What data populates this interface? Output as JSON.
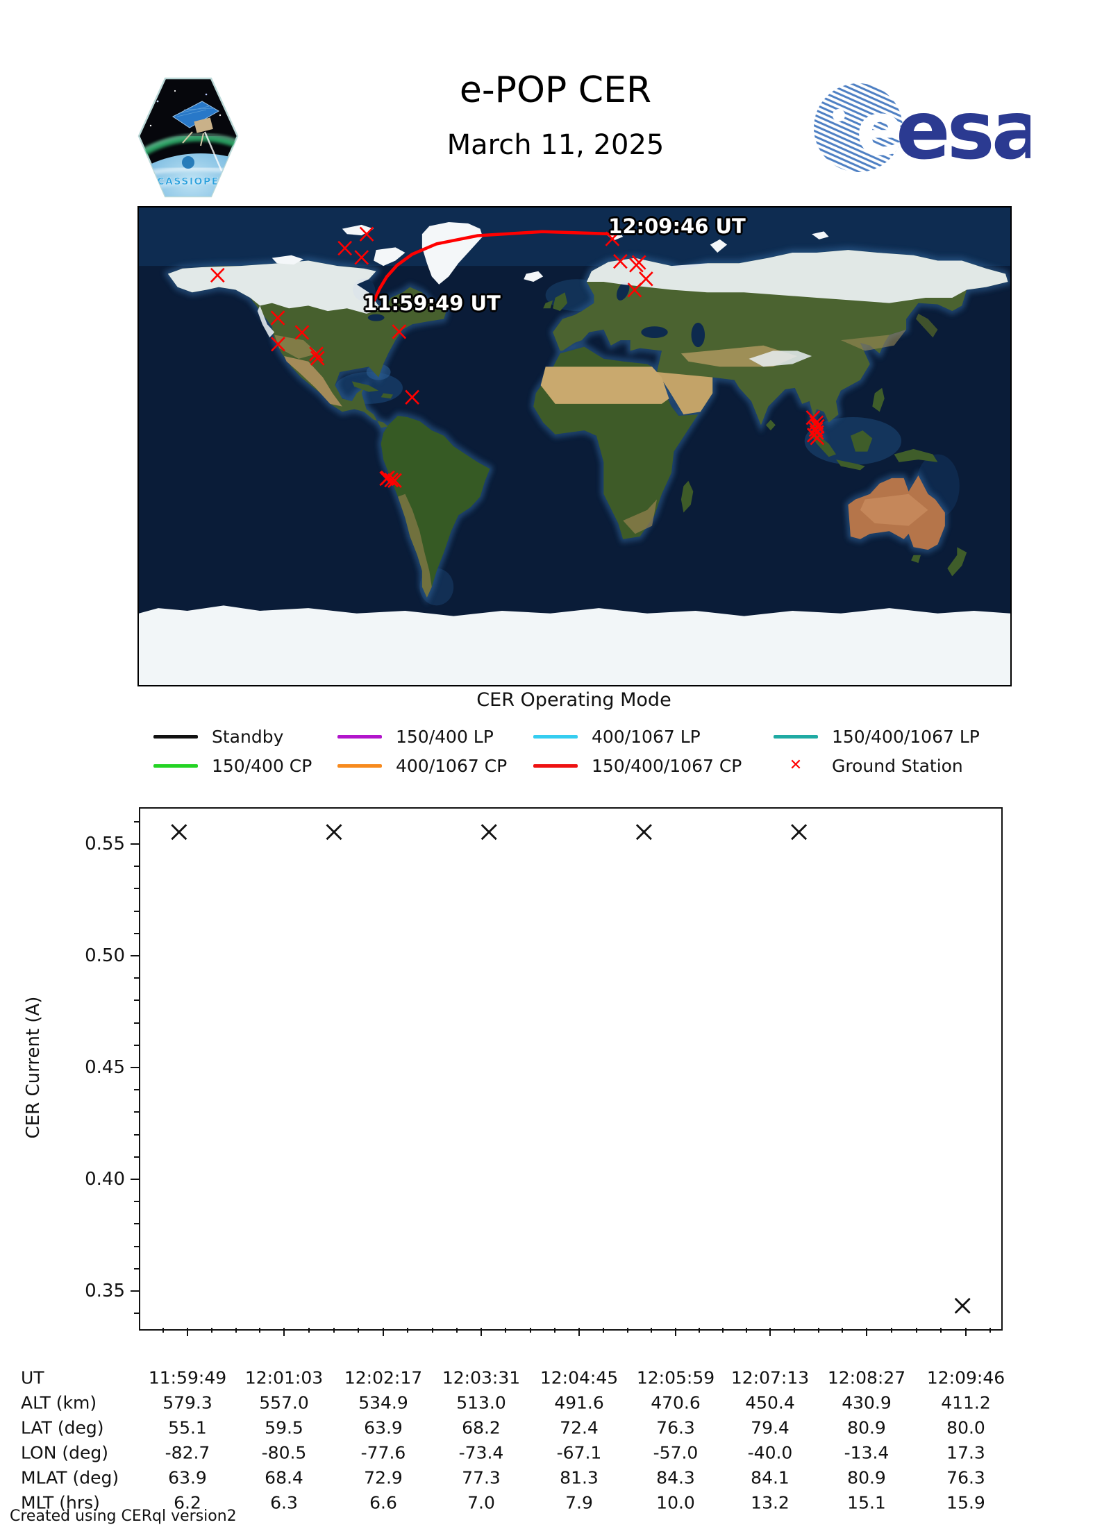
{
  "header": {
    "title": "e-POP CER",
    "subtitle": "March 11, 2025",
    "patch_text": "CASSIOPE",
    "esa_text": "esa"
  },
  "map": {
    "start_time_label": "11:59:49 UT",
    "end_time_label": "12:09:46 UT",
    "track_color": "#ff0000",
    "station_color": "#ff0000",
    "track_lonlat": [
      [
        -82.7,
        55.1
      ],
      [
        -80.5,
        59.5
      ],
      [
        -77.6,
        63.9
      ],
      [
        -73.4,
        68.2
      ],
      [
        -67.1,
        72.4
      ],
      [
        -57.0,
        76.3
      ],
      [
        -40.0,
        79.4
      ],
      [
        -13.4,
        80.9
      ],
      [
        17.3,
        80.0
      ]
    ],
    "stations_lonlat": [
      [
        -147.5,
        64.5
      ],
      [
        -94.9,
        74.7
      ],
      [
        -85.9,
        80.0
      ],
      [
        -88.0,
        71.2
      ],
      [
        -122.6,
        48.4
      ],
      [
        -112.6,
        42.9
      ],
      [
        -122.5,
        38.5
      ],
      [
        -106.7,
        34.8
      ],
      [
        -106.2,
        33.2
      ],
      [
        -72.5,
        43.2
      ],
      [
        -67.1,
        18.5
      ],
      [
        -77.2,
        -11.9
      ],
      [
        -77.7,
        -12.2
      ],
      [
        -75.7,
        -12.7
      ],
      [
        -74.3,
        -12.9
      ],
      [
        15.6,
        78.2
      ],
      [
        18.9,
        69.7
      ],
      [
        26.6,
        69.3
      ],
      [
        25.5,
        68.3
      ],
      [
        29.5,
        63.1
      ],
      [
        24.8,
        58.9
      ],
      [
        98.5,
        10.8
      ],
      [
        99.9,
        8.9
      ],
      [
        100.3,
        7.5
      ],
      [
        99.7,
        6.3
      ],
      [
        100.1,
        5.2
      ],
      [
        98.9,
        4.2
      ],
      [
        100.2,
        3.2
      ]
    ]
  },
  "legend": {
    "title": "CER Operating Mode",
    "rows": [
      [
        {
          "label": "Standby",
          "color": "#111111",
          "type": "line"
        },
        {
          "label": "150/400 LP",
          "color": "#b215cb",
          "type": "line"
        },
        {
          "label": "400/1067 LP",
          "color": "#35cdf0",
          "type": "line"
        },
        {
          "label": "150/400/1067 LP",
          "color": "#1faaa3",
          "type": "line"
        }
      ],
      [
        {
          "label": "150/400 CP",
          "color": "#24d324",
          "type": "line"
        },
        {
          "label": "400/1067 CP",
          "color": "#f78a1e",
          "type": "line"
        },
        {
          "label": "150/400/1067 CP",
          "color": "#ee1111",
          "type": "line"
        },
        {
          "label": "Ground Station",
          "color": "#ff0000",
          "type": "marker"
        }
      ]
    ]
  },
  "chart_data": {
    "type": "scatter",
    "title": "",
    "xlabel": "",
    "ylabel": "CER Current (A)",
    "marker": "x",
    "marker_color": "#111111",
    "grid": false,
    "ylim": [
      0.3335,
      0.5665
    ],
    "y_ticks": [
      0.55,
      0.5,
      0.45,
      0.4,
      0.35
    ],
    "y_tick_labels": [
      "0.55",
      "0.50",
      "0.45",
      "0.40",
      "0.35"
    ],
    "x_range_ut": [
      "11:59:49",
      "12:09:46"
    ],
    "x_tick_labels": [
      "11:59:49",
      "12:01:03",
      "12:02:17",
      "12:03:31",
      "12:04:45",
      "12:05:59",
      "12:07:13",
      "12:08:27",
      "12:09:46"
    ],
    "series": [
      {
        "name": "CER Current",
        "points": [
          {
            "ut_est": "11:59:42",
            "y": 0.556,
            "x_frac": 0.045
          },
          {
            "ut_est": "12:01:41",
            "y": 0.556,
            "x_frac": 0.225
          },
          {
            "ut_est": "12:03:40",
            "y": 0.556,
            "x_frac": 0.405
          },
          {
            "ut_est": "12:05:39",
            "y": 0.556,
            "x_frac": 0.585
          },
          {
            "ut_est": "12:07:38",
            "y": 0.556,
            "x_frac": 0.765
          },
          {
            "ut_est": "12:09:42",
            "y": 0.344,
            "x_frac": 0.955
          }
        ]
      }
    ]
  },
  "table": {
    "rows": [
      {
        "label": "UT",
        "values": [
          "11:59:49",
          "12:01:03",
          "12:02:17",
          "12:03:31",
          "12:04:45",
          "12:05:59",
          "12:07:13",
          "12:08:27",
          "12:09:46"
        ]
      },
      {
        "label": "ALT (km)",
        "values": [
          "579.3",
          "557.0",
          "534.9",
          "513.0",
          "491.6",
          "470.6",
          "450.4",
          "430.9",
          "411.2"
        ]
      },
      {
        "label": "LAT (deg)",
        "values": [
          "55.1",
          "59.5",
          "63.9",
          "68.2",
          "72.4",
          "76.3",
          "79.4",
          "80.9",
          "80.0"
        ]
      },
      {
        "label": "LON (deg)",
        "values": [
          "-82.7",
          "-80.5",
          "-77.6",
          "-73.4",
          "-67.1",
          "-57.0",
          "-40.0",
          "-13.4",
          "17.3"
        ]
      },
      {
        "label": "MLAT (deg)",
        "values": [
          "63.9",
          "68.4",
          "72.9",
          "77.3",
          "81.3",
          "84.3",
          "84.1",
          "80.9",
          "76.3"
        ]
      },
      {
        "label": "MLT (hrs)",
        "values": [
          "6.2",
          "6.3",
          "6.6",
          "7.0",
          "7.9",
          "10.0",
          "13.2",
          "15.1",
          "15.9"
        ]
      }
    ]
  },
  "footer": "Created using CERql version2"
}
